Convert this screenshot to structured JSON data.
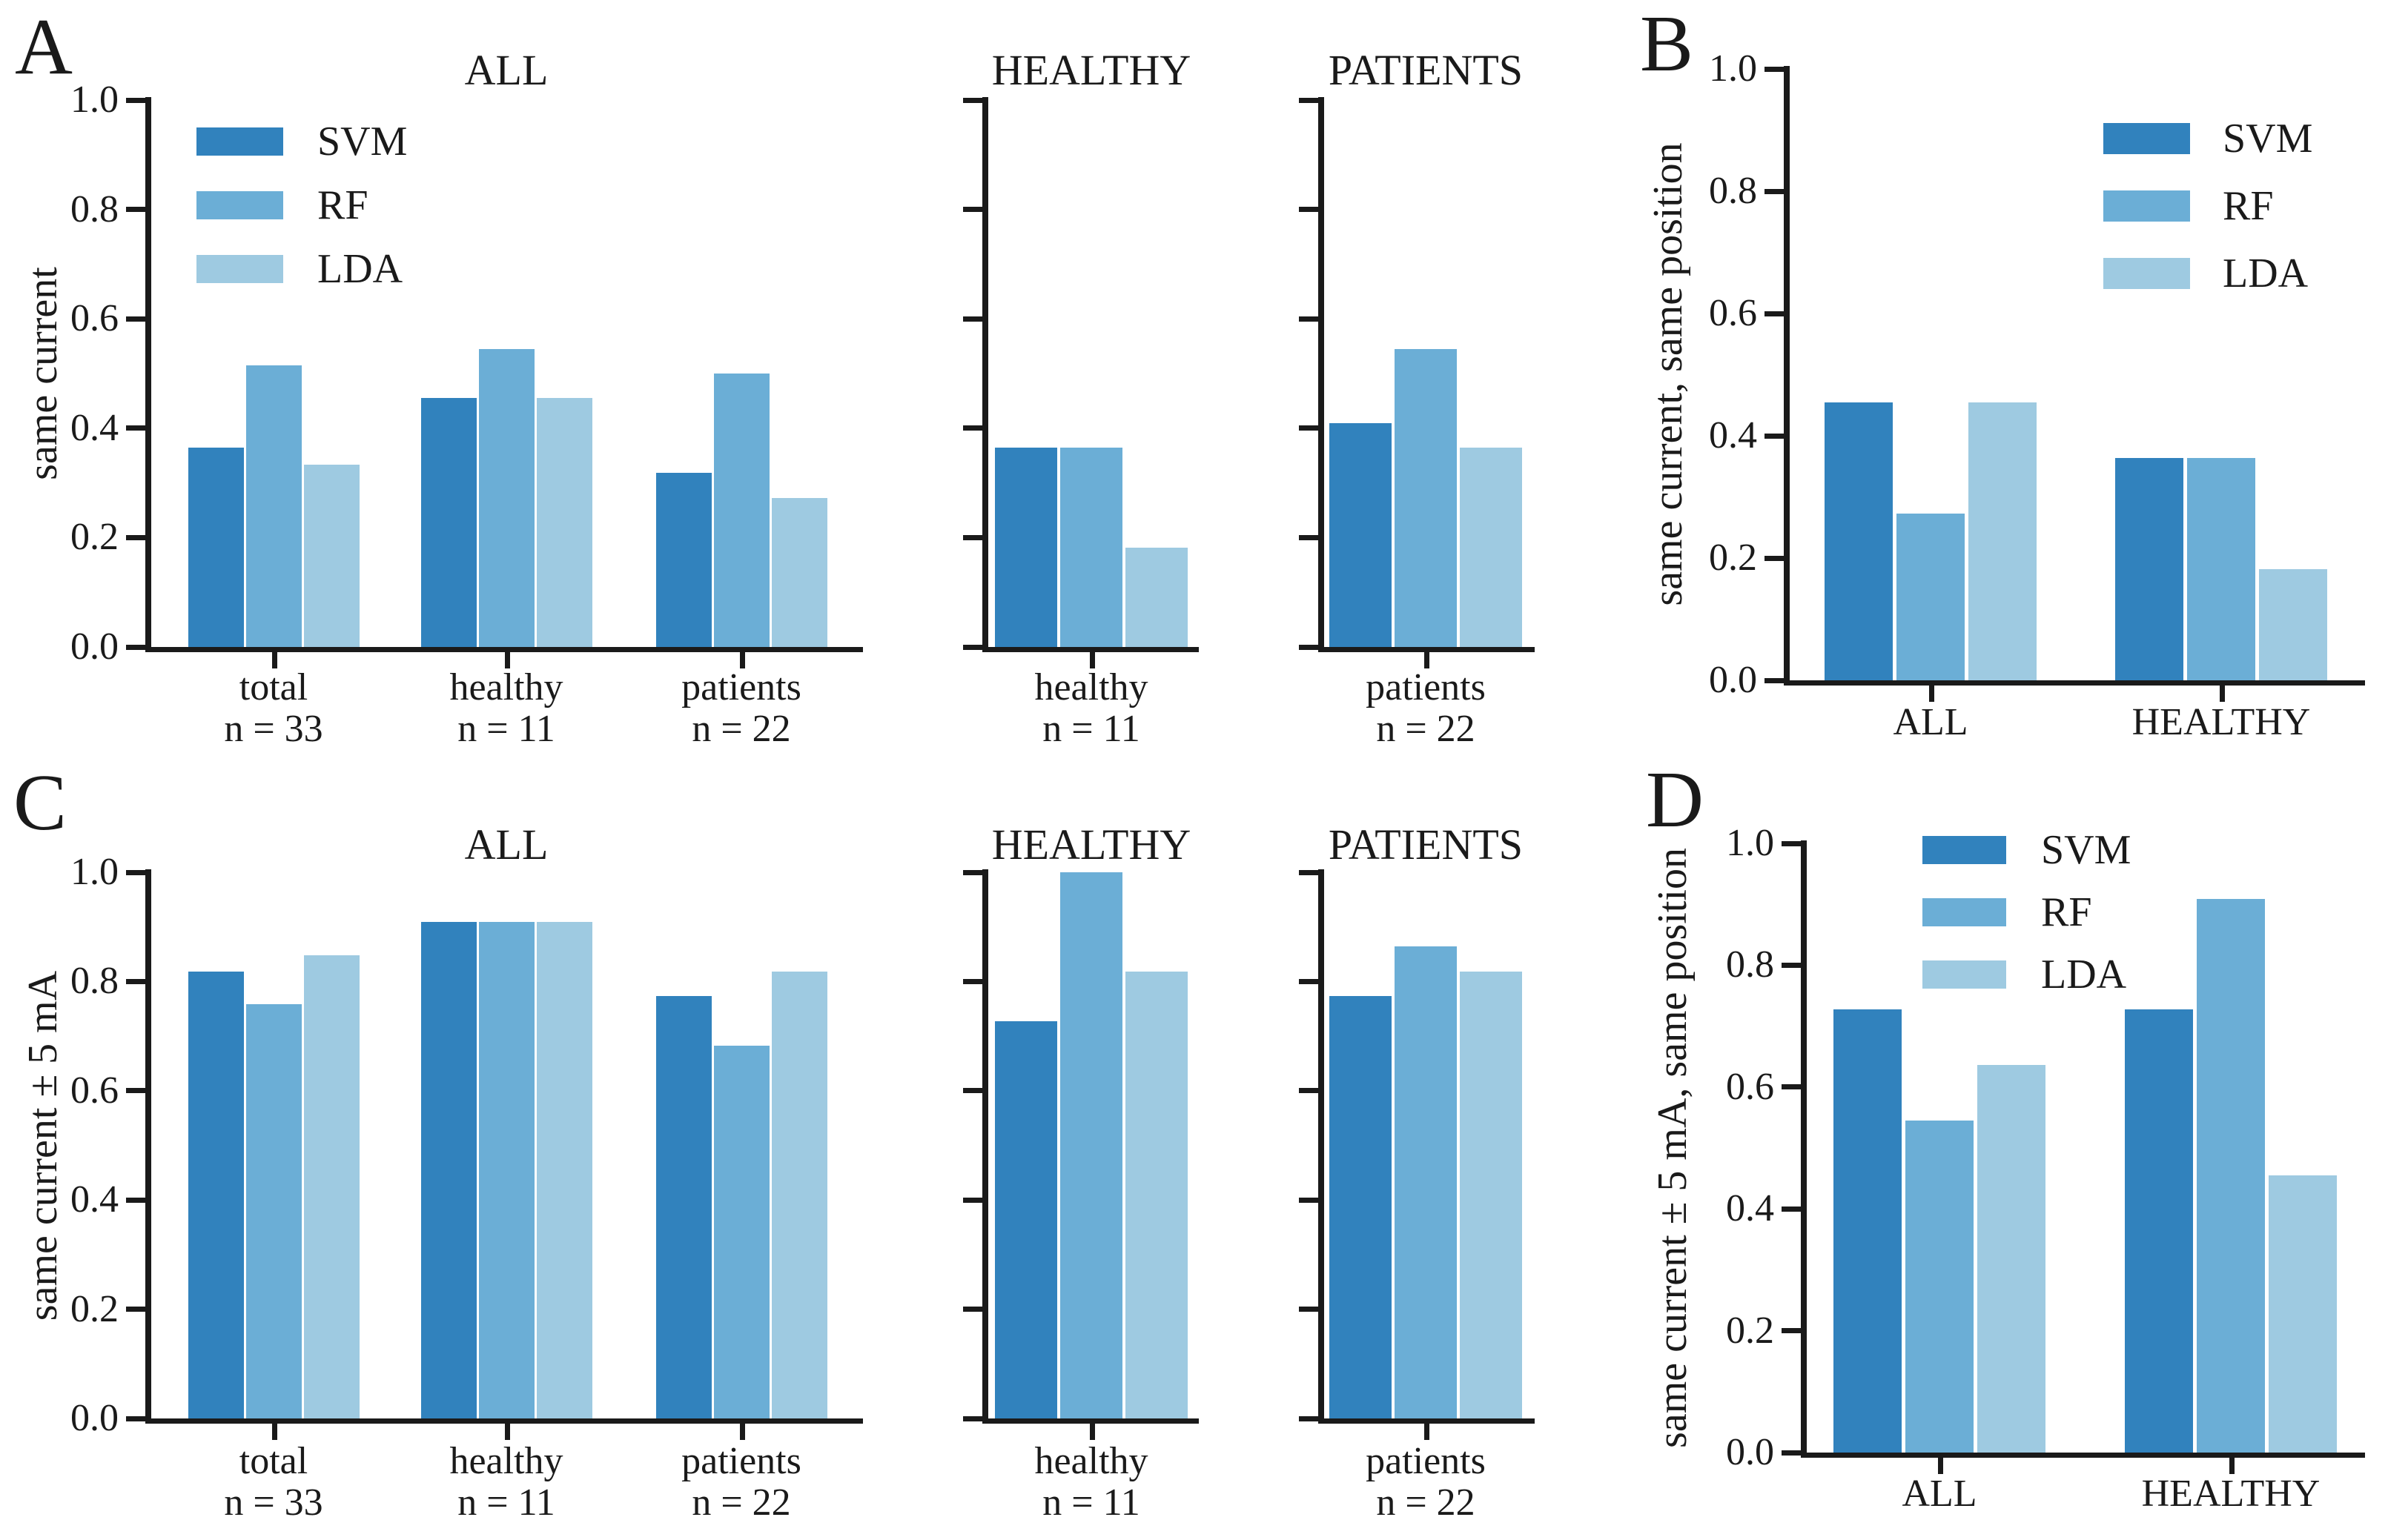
{
  "figure": {
    "background": "#ffffff",
    "text_color": "#1a1a1a"
  },
  "legend": {
    "series": [
      {
        "name": "SVM",
        "color": "#3182bd"
      },
      {
        "name": "RF",
        "color": "#6baed6"
      },
      {
        "name": "LDA",
        "color": "#9ecae1"
      }
    ]
  },
  "chart_data": {
    "type": "grouped-bar",
    "ylim": [
      0,
      1
    ],
    "yticks": [
      "0.0",
      "0.2",
      "0.4",
      "0.6",
      "0.8",
      "1.0"
    ],
    "series": [
      "SVM",
      "RF",
      "LDA"
    ],
    "grid": false,
    "panels": [
      {
        "letter": "A",
        "axes": [
          {
            "id": "A-main",
            "title": "ALL",
            "ylabel": "same current",
            "show_ytick_labels": true,
            "legend": true,
            "groups": [
              {
                "label": "total",
                "sublabel": "n = 33",
                "values": [
                  0.364,
                  0.515,
                  0.333
                ]
              },
              {
                "label": "healthy",
                "sublabel": "n = 11",
                "values": [
                  0.455,
                  0.545,
                  0.455
                ]
              },
              {
                "label": "patients",
                "sublabel": "n = 22",
                "values": [
                  0.318,
                  0.5,
                  0.273
                ]
              }
            ]
          },
          {
            "id": "A-sub1",
            "title": "HEALTHY",
            "groups": [
              {
                "label": "healthy",
                "sublabel": "n = 11",
                "values": [
                  0.364,
                  0.364,
                  0.182
                ]
              }
            ]
          },
          {
            "id": "A-sub2",
            "title": "PATIENTS",
            "groups": [
              {
                "label": "patients",
                "sublabel": "n = 22",
                "values": [
                  0.409,
                  0.545,
                  0.364
                ]
              }
            ]
          }
        ]
      },
      {
        "letter": "B",
        "axes": [
          {
            "id": "B",
            "ylabel": "same current, same position",
            "show_ytick_labels": true,
            "legend": true,
            "groups": [
              {
                "label": "ALL",
                "values": [
                  0.455,
                  0.273,
                  0.455
                ]
              },
              {
                "label": "HEALTHY",
                "values": [
                  0.364,
                  0.364,
                  0.182
                ]
              }
            ]
          }
        ]
      },
      {
        "letter": "C",
        "axes": [
          {
            "id": "C-main",
            "title": "ALL",
            "ylabel": "same current ± 5 mA",
            "show_ytick_labels": true,
            "groups": [
              {
                "label": "total",
                "sublabel": "n = 33",
                "values": [
                  0.818,
                  0.758,
                  0.848
                ]
              },
              {
                "label": "healthy",
                "sublabel": "n = 11",
                "values": [
                  0.909,
                  0.909,
                  0.909
                ]
              },
              {
                "label": "patients",
                "sublabel": "n = 22",
                "values": [
                  0.773,
                  0.682,
                  0.818
                ]
              }
            ]
          },
          {
            "id": "C-sub1",
            "title": "HEALTHY",
            "groups": [
              {
                "label": "healthy",
                "sublabel": "n = 11",
                "values": [
                  0.727,
                  1.0,
                  0.818
                ]
              }
            ]
          },
          {
            "id": "C-sub2",
            "title": "PATIENTS",
            "groups": [
              {
                "label": "patients",
                "sublabel": "n = 22",
                "values": [
                  0.773,
                  0.864,
                  0.818
                ]
              }
            ]
          }
        ]
      },
      {
        "letter": "D",
        "axes": [
          {
            "id": "D",
            "ylabel": "same current ± 5 mA, same position",
            "show_ytick_labels": true,
            "legend": true,
            "groups": [
              {
                "label": "ALL",
                "values": [
                  0.727,
                  0.545,
                  0.636
                ]
              },
              {
                "label": "HEALTHY",
                "values": [
                  0.727,
                  0.909,
                  0.455
                ]
              }
            ]
          }
        ]
      }
    ]
  }
}
